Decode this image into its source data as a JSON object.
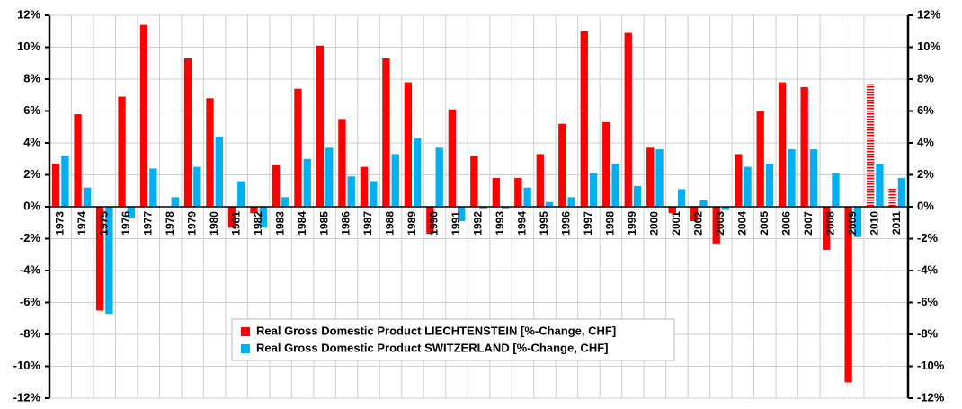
{
  "chart_data": {
    "type": "bar",
    "categories": [
      "1973",
      "1974",
      "1975",
      "1976",
      "1977",
      "1978",
      "1979",
      "1980",
      "1981",
      "1982",
      "1983",
      "1984",
      "1985",
      "1986",
      "1987",
      "1988",
      "1989",
      "1990",
      "1991",
      "1992",
      "1993",
      "1994",
      "1995",
      "1996",
      "1997",
      "1998",
      "1999",
      "2000",
      "2001",
      "2002",
      "2003",
      "2004",
      "2005",
      "2006",
      "2007",
      "2008",
      "2009",
      "2010",
      "2011"
    ],
    "series": [
      {
        "name": "Real Gross Domestic Product LIECHTENSTEIN [%-Change, CHF]",
        "color": "#ff0000",
        "values": [
          2.7,
          5.8,
          -6.5,
          6.9,
          11.4,
          null,
          9.3,
          6.8,
          -1.3,
          -0.4,
          2.6,
          7.4,
          10.1,
          5.5,
          2.5,
          9.3,
          7.8,
          -1.7,
          6.1,
          3.2,
          1.8,
          1.8,
          3.3,
          5.2,
          11.0,
          5.3,
          10.9,
          3.7,
          -0.4,
          -0.9,
          -2.3,
          3.3,
          6.0,
          7.8,
          7.5,
          -2.7,
          -11.0,
          7.7,
          1.2
        ],
        "hatched": [
          37,
          38
        ]
      },
      {
        "name": "Real Gross Domestic Product SWITZERLAND [%-Change, CHF]",
        "color": "#00b0f0",
        "values": [
          3.2,
          1.2,
          -6.7,
          -0.7,
          2.4,
          0.6,
          2.5,
          4.4,
          1.6,
          -1.3,
          0.6,
          3.0,
          3.7,
          1.9,
          1.6,
          3.3,
          4.3,
          3.7,
          -0.9,
          -0.1,
          -0.1,
          1.2,
          0.3,
          0.6,
          2.1,
          2.7,
          1.3,
          3.6,
          1.1,
          0.4,
          -0.2,
          2.5,
          2.7,
          3.6,
          3.6,
          2.1,
          -1.9,
          2.7,
          1.8
        ]
      }
    ],
    "ylim": [
      -12,
      12
    ],
    "yticks": [
      {
        "value": -12,
        "label": "-12%"
      },
      {
        "value": -10,
        "label": "-10%"
      },
      {
        "value": -8,
        "label": "-8%"
      },
      {
        "value": -6,
        "label": "-6%"
      },
      {
        "value": -4,
        "label": "-4%"
      },
      {
        "value": -2,
        "label": "-2%"
      },
      {
        "value": 0,
        "label": "0%"
      },
      {
        "value": 2,
        "label": "2%"
      },
      {
        "value": 4,
        "label": "4%"
      },
      {
        "value": 6,
        "label": "6%"
      },
      {
        "value": 8,
        "label": "8%"
      },
      {
        "value": 10,
        "label": "10%"
      },
      {
        "value": 12,
        "label": "12%"
      }
    ],
    "y2lim": [
      -12,
      12
    ],
    "y2ticks": [
      {
        "value": -12,
        "label": "-12%"
      },
      {
        "value": -10,
        "label": "-10%"
      },
      {
        "value": -8,
        "label": "-8%"
      },
      {
        "value": -6,
        "label": "-6%"
      },
      {
        "value": -4,
        "label": "-4%"
      },
      {
        "value": -2,
        "label": "-2%"
      },
      {
        "value": 0,
        "label": "0%"
      },
      {
        "value": 2,
        "label": "2%"
      },
      {
        "value": 4,
        "label": "4%"
      },
      {
        "value": 6,
        "label": "6%"
      },
      {
        "value": 8,
        "label": "8%"
      },
      {
        "value": 10,
        "label": "10%"
      },
      {
        "value": 12,
        "label": "12%"
      }
    ],
    "grid": true
  }
}
